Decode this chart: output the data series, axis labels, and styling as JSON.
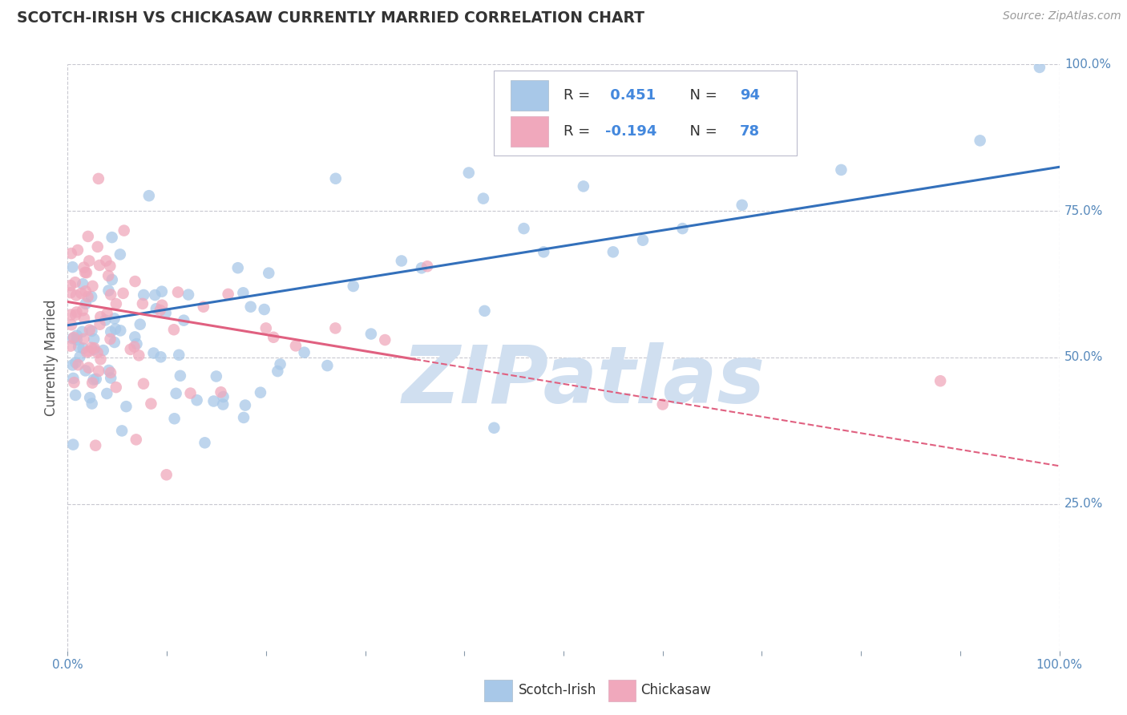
{
  "title": "SCOTCH-IRISH VS CHICKASAW CURRENTLY MARRIED CORRELATION CHART",
  "source_text": "Source: ZipAtlas.com",
  "ylabel": "Currently Married",
  "scotch_irish_R": 0.451,
  "scotch_irish_N": 94,
  "chickasaw_R": -0.194,
  "chickasaw_N": 78,
  "xlim": [
    0.0,
    1.0
  ],
  "ylim": [
    0.0,
    1.0
  ],
  "ytick_labels": [
    "25.0%",
    "50.0%",
    "75.0%",
    "100.0%"
  ],
  "ytick_positions": [
    0.25,
    0.5,
    0.75,
    1.0
  ],
  "background_color": "#ffffff",
  "grid_color": "#c8c8d0",
  "scotch_irish_color": "#a8c8e8",
  "chickasaw_color": "#f0a8bc",
  "trend_scotch_color": "#3370bb",
  "trend_chickasaw_color": "#e06080",
  "watermark_text": "ZIPatlas",
  "watermark_color": "#d0dff0",
  "legend_bottom": [
    "Scotch-Irish",
    "Chickasaw"
  ]
}
